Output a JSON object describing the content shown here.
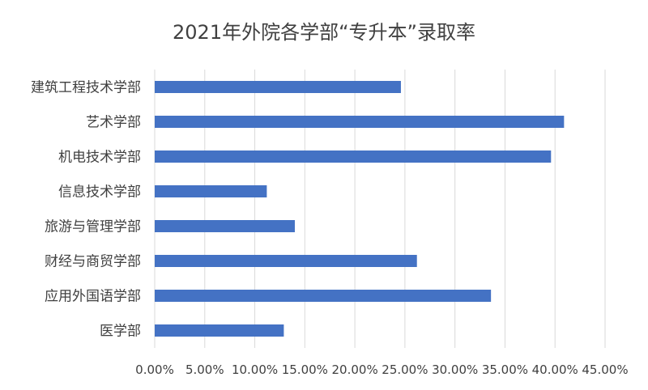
{
  "chart_data": {
    "type": "bar",
    "orientation": "horizontal",
    "title": "2021年外院各学部“专升本”录取率",
    "categories": [
      "建筑工程技术学部",
      "艺术学部",
      "机电技术学部",
      "信息技术学部",
      "旅游与管理学部",
      "财经与商贸学部",
      "应用外国语学部",
      "医学部"
    ],
    "values": [
      24.6,
      40.9,
      39.6,
      11.2,
      14.0,
      26.2,
      33.6,
      12.9
    ],
    "value_unit": "%",
    "xlim": [
      0,
      45
    ],
    "x_ticks": [
      "0.00%",
      "5.00%",
      "10.00%",
      "15.00%",
      "20.00%",
      "25.00%",
      "30.00%",
      "35.00%",
      "40.00%",
      "45.00%"
    ],
    "grid": true,
    "legend": "none",
    "bar_color": "#4472c4"
  }
}
